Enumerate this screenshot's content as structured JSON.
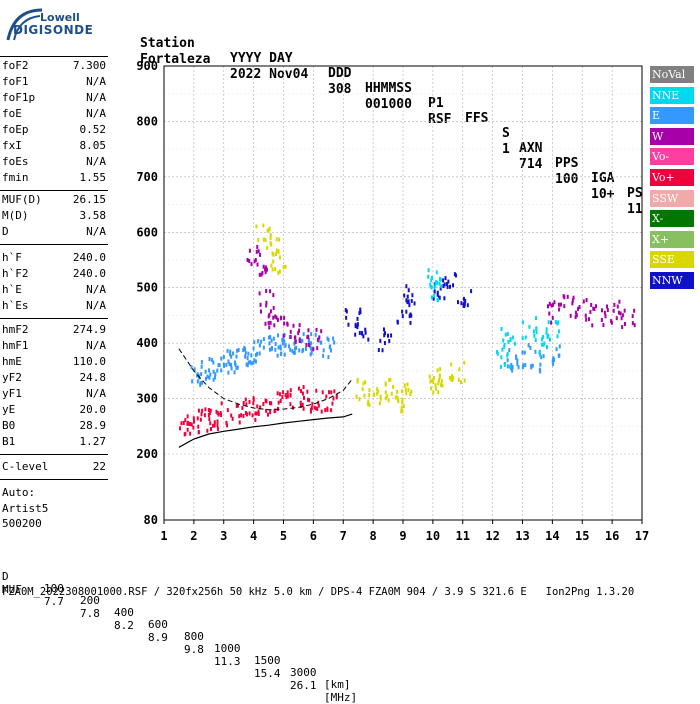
{
  "logo": {
    "line1": "Lowell",
    "line2": "DIGISONDE"
  },
  "header": {
    "row1": [
      "Station",
      "YYYY DAY",
      "DDD",
      "HHMMSS",
      "P1",
      "FFS",
      "S",
      "AXN",
      "PPS",
      "IGA",
      "PS"
    ],
    "row2": [
      "Fortaleza",
      "2022 Nov04",
      "308",
      "001000",
      "RSF",
      "",
      "1",
      "714",
      "100",
      "10+",
      "11"
    ]
  },
  "params_group1": [
    {
      "name": "foF2",
      "value": "7.300"
    },
    {
      "name": "foF1",
      "value": "N/A"
    },
    {
      "name": "foF1p",
      "value": "N/A"
    },
    {
      "name": "foE",
      "value": "N/A"
    },
    {
      "name": "foEp",
      "value": "0.52"
    },
    {
      "name": "fxI",
      "value": "8.05"
    },
    {
      "name": "foEs",
      "value": "N/A"
    },
    {
      "name": "fmin",
      "value": "1.55"
    }
  ],
  "params_group2": [
    {
      "name": "MUF(D)",
      "value": "26.15"
    },
    {
      "name": "M(D)",
      "value": "3.58"
    },
    {
      "name": "D",
      "value": "N/A"
    }
  ],
  "params_group3": [
    {
      "name": "h`F",
      "value": "240.0"
    },
    {
      "name": "h`F2",
      "value": "240.0"
    },
    {
      "name": "h`E",
      "value": "N/A"
    },
    {
      "name": "h`Es",
      "value": "N/A"
    }
  ],
  "params_group4": [
    {
      "name": "hmF2",
      "value": "274.9"
    },
    {
      "name": "hmF1",
      "value": "N/A"
    },
    {
      "name": "hmE",
      "value": "110.0"
    },
    {
      "name": "yF2",
      "value": "24.8"
    },
    {
      "name": "yF1",
      "value": "N/A"
    },
    {
      "name": "yE",
      "value": "20.0"
    },
    {
      "name": "B0",
      "value": "28.9"
    },
    {
      "name": "B1",
      "value": "1.27"
    }
  ],
  "params_group5": [
    {
      "name": "C-level",
      "value": "22"
    }
  ],
  "autoscale": {
    "line1": "Auto:",
    "line2": "Artist5",
    "line3": "500200"
  },
  "bottom_table": {
    "row1_label": "D",
    "row1_values": [
      "100",
      "200",
      "400",
      "600",
      "800",
      "1000",
      "1500",
      "3000"
    ],
    "row1_unit": "[km]",
    "row2_label": "MUF",
    "row2_values": [
      "7.7",
      "7.8",
      "8.2",
      "8.9",
      "9.8",
      "11.3",
      "15.4",
      "26.1"
    ],
    "row2_unit": "[MHz]"
  },
  "footer": "FZA0M_2022308001000.RSF / 320fx256h 50 kHz 5.0 km / DPS-4 FZA0M 904 / 3.9 S 321.6 E   Ion2Png 1.3.20",
  "legend": [
    {
      "label": "NoVal",
      "color": "#808080"
    },
    {
      "label": "NNE",
      "color": "#00d8f0"
    },
    {
      "label": "E",
      "color": "#3399ff"
    },
    {
      "label": "W",
      "color": "#a800a8"
    },
    {
      "label": "Vo-",
      "color": "#ff3fa0"
    },
    {
      "label": "Vo+",
      "color": "#f0003c"
    },
    {
      "label": "SSW",
      "color": "#f0aaaa"
    },
    {
      "label": "X-",
      "color": "#007800"
    },
    {
      "label": "X+",
      "color": "#88c060"
    },
    {
      "label": "SSE",
      "color": "#d8d800"
    },
    {
      "label": "NNW",
      "color": "#1010c8"
    }
  ],
  "chart_data": {
    "type": "scatter",
    "xlim": [
      1,
      17
    ],
    "ylim": [
      80,
      900
    ],
    "x_ticks": [
      1,
      2,
      3,
      4,
      5,
      6,
      7,
      8,
      9,
      10,
      11,
      12,
      13,
      14,
      15,
      16,
      17
    ],
    "y_ticks": [
      80,
      200,
      300,
      400,
      500,
      600,
      700,
      800,
      900
    ],
    "grid": true,
    "legend_position": "right",
    "profile_curve": {
      "x": [
        1.5,
        2.0,
        2.5,
        3.0,
        3.5,
        4.0,
        4.5,
        5.0,
        5.5,
        6.0,
        6.5,
        7.0,
        7.3
      ],
      "y": [
        212,
        227,
        236,
        241,
        245,
        249,
        252,
        256,
        259,
        262,
        265,
        267,
        272
      ]
    },
    "trace_dashed": {
      "x": [
        1.5,
        2.0,
        2.5,
        3.0,
        3.5,
        4.0,
        4.5,
        5.0,
        5.5,
        6.0,
        6.5,
        7.0,
        7.3
      ],
      "y": [
        390,
        350,
        320,
        300,
        290,
        283,
        280,
        281,
        284,
        290,
        300,
        315,
        335
      ]
    },
    "series": [
      {
        "name": "E",
        "points": [
          [
            2.1,
            345
          ],
          [
            2.4,
            350
          ],
          [
            2.7,
            358
          ],
          [
            3.0,
            365
          ],
          [
            3.3,
            370
          ],
          [
            3.6,
            378
          ],
          [
            3.9,
            385
          ],
          [
            4.2,
            390
          ],
          [
            4.5,
            395
          ],
          [
            4.8,
            398
          ],
          [
            5.1,
            402
          ],
          [
            5.4,
            405
          ],
          [
            5.7,
            402
          ],
          [
            6.0,
            400
          ],
          [
            6.5,
            395
          ],
          [
            12.6,
            372
          ],
          [
            13.0,
            380
          ],
          [
            13.5,
            370
          ],
          [
            14.2,
            380
          ]
        ]
      },
      {
        "name": "Vo+",
        "points": [
          [
            1.7,
            250
          ],
          [
            2.0,
            260
          ],
          [
            2.3,
            270
          ],
          [
            2.6,
            265
          ],
          [
            3.0,
            275
          ],
          [
            3.4,
            280
          ],
          [
            3.8,
            285
          ],
          [
            4.2,
            290
          ],
          [
            4.6,
            295
          ],
          [
            5.0,
            300
          ],
          [
            5.4,
            305
          ],
          [
            5.8,
            300
          ],
          [
            6.2,
            300
          ],
          [
            6.6,
            298
          ]
        ]
      },
      {
        "name": "W",
        "points": [
          [
            4.0,
            560
          ],
          [
            4.2,
            540
          ],
          [
            4.4,
            480
          ],
          [
            4.6,
            450
          ],
          [
            5.0,
            430
          ],
          [
            5.5,
            420
          ],
          [
            6.0,
            410
          ],
          [
            14.0,
            460
          ],
          [
            14.5,
            470
          ],
          [
            15.0,
            465
          ],
          [
            15.5,
            455
          ],
          [
            16.0,
            460
          ],
          [
            16.5,
            450
          ]
        ]
      },
      {
        "name": "SSE",
        "points": [
          [
            4.3,
            600
          ],
          [
            4.6,
            580
          ],
          [
            4.8,
            550
          ],
          [
            7.6,
            320
          ],
          [
            8.0,
            310
          ],
          [
            8.4,
            320
          ],
          [
            8.8,
            300
          ],
          [
            9.0,
            310
          ],
          [
            10.1,
            330
          ],
          [
            10.3,
            340
          ],
          [
            10.8,
            350
          ]
        ]
      },
      {
        "name": "NNW",
        "points": [
          [
            7.3,
            450
          ],
          [
            7.6,
            430
          ],
          [
            8.4,
            410
          ],
          [
            9.0,
            460
          ],
          [
            9.2,
            490
          ],
          [
            10.2,
            490
          ],
          [
            10.5,
            520
          ],
          [
            11.0,
            480
          ]
        ]
      },
      {
        "name": "NNE",
        "points": [
          [
            10.0,
            520
          ],
          [
            10.1,
            500
          ],
          [
            12.3,
            380
          ],
          [
            12.5,
            420
          ],
          [
            13.2,
            430
          ],
          [
            13.6,
            400
          ],
          [
            14.0,
            430
          ]
        ]
      }
    ]
  }
}
